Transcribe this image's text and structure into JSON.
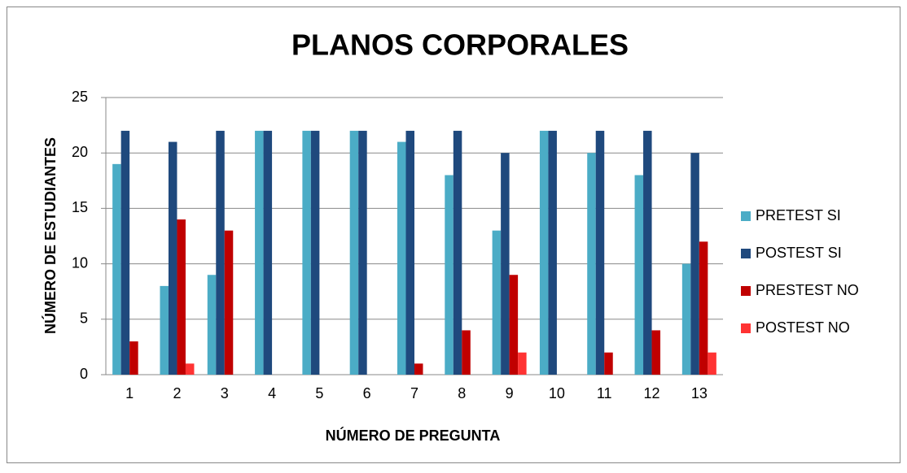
{
  "chart_data": {
    "type": "bar",
    "title": "PLANOS CORPORALES",
    "x_label": "NÚMERO DE PREGUNTA",
    "y_label": "NÚMERO DE ESTUDIANTES",
    "categories": [
      "1",
      "2",
      "3",
      "4",
      "5",
      "6",
      "7",
      "8",
      "9",
      "10",
      "11",
      "12",
      "13"
    ],
    "series": [
      {
        "name": "PRETEST SI",
        "color": "#4bacc6",
        "values": [
          19,
          8,
          9,
          22,
          22,
          22,
          21,
          18,
          13,
          22,
          20,
          18,
          10
        ]
      },
      {
        "name": "POSTEST SI",
        "color": "#1f497d",
        "values": [
          22,
          21,
          22,
          22,
          22,
          22,
          22,
          22,
          20,
          22,
          22,
          22,
          20
        ]
      },
      {
        "name": "PRESTEST NO",
        "color": "#c00000",
        "values": [
          3,
          14,
          13,
          0,
          0,
          0,
          1,
          4,
          9,
          0,
          2,
          4,
          12
        ]
      },
      {
        "name": "POSTEST NO",
        "color": "#ff3333",
        "values": [
          0,
          1,
          0,
          0,
          0,
          0,
          0,
          0,
          2,
          0,
          0,
          0,
          2
        ]
      }
    ],
    "ylim": [
      0,
      25
    ],
    "yticks": [
      0,
      5,
      10,
      15,
      20,
      25
    ],
    "grid": true,
    "legend": "right"
  }
}
